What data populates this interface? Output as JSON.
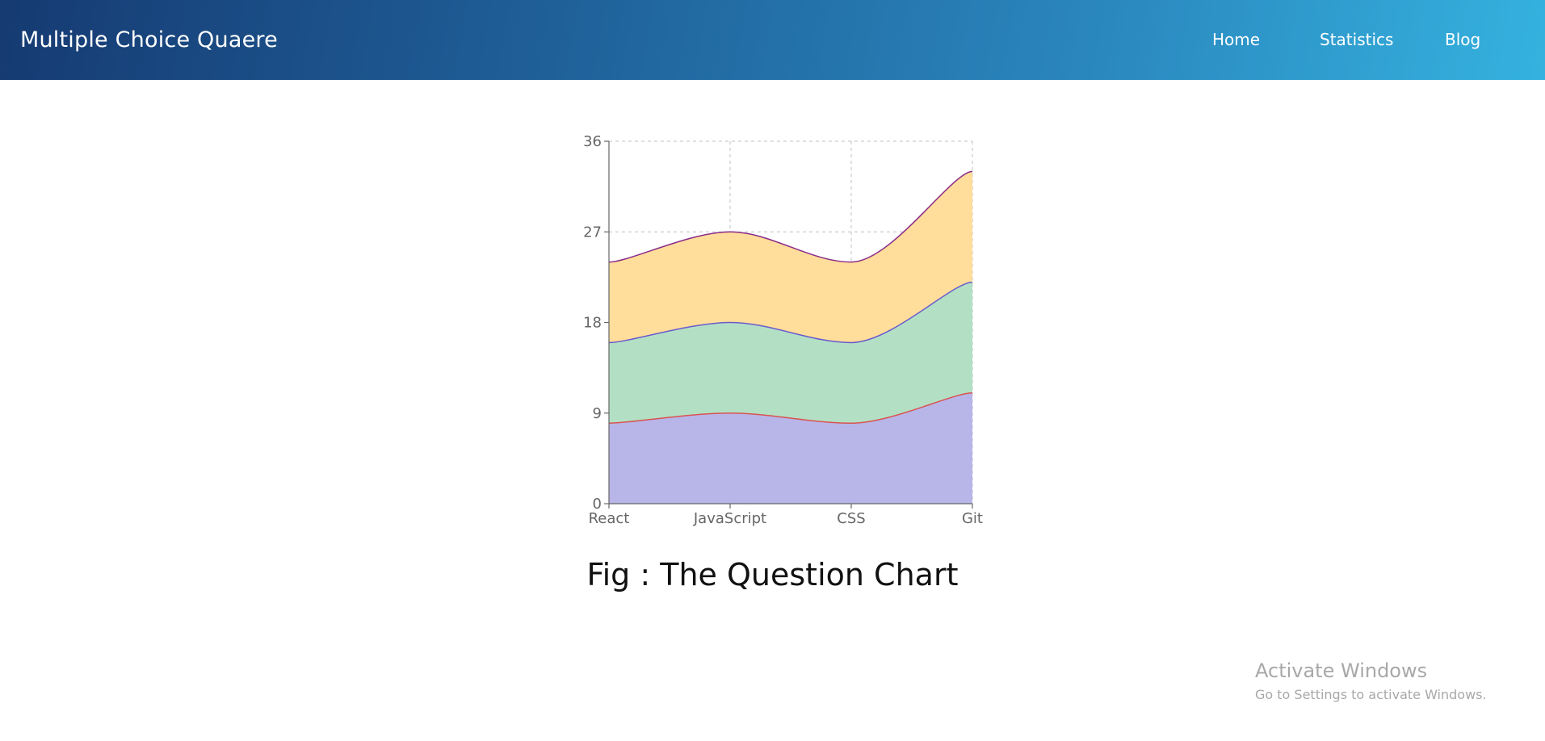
{
  "navbar": {
    "brand": "Multiple Choice Quaere",
    "links": [
      "Home",
      "Statistics",
      "Blog"
    ]
  },
  "caption": "Fig : The Question Chart",
  "watermark": {
    "title": "Activate Windows",
    "subtitle": "Go to Settings to activate Windows."
  },
  "chart_data": {
    "type": "area",
    "stacked": true,
    "categories": [
      "React",
      "JavaScript",
      "CSS",
      "Git"
    ],
    "series": [
      {
        "values": [
          8,
          9,
          8,
          11
        ],
        "fill": "#b8b5e8",
        "stroke": "#d9534f"
      },
      {
        "values": [
          8,
          9,
          8,
          11
        ],
        "fill": "#b3e0c5",
        "stroke": "#6a5acd"
      },
      {
        "values": [
          8,
          9,
          8,
          11
        ],
        "fill": "#ffdd9a",
        "stroke": "#8a2b8a"
      }
    ],
    "yticks": [
      0,
      9,
      18,
      27,
      36
    ],
    "ylim": [
      0,
      36
    ],
    "grid": true,
    "title": "",
    "xlabel": "",
    "ylabel": ""
  }
}
